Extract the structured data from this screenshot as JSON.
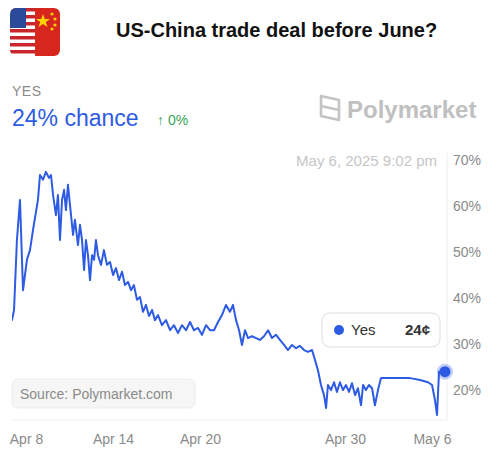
{
  "chart_data": {
    "type": "line",
    "title": "US-China trade deal before June?",
    "annotations": {
      "outcome": "YES",
      "chance": "24% chance",
      "change": "↑ 0%",
      "brand": "Polymarket",
      "timestamp": "May 6, 2025 9:02 pm",
      "source": "Source: Polymarket.com",
      "tooltip_value": "24¢"
    },
    "x": [
      7.0,
      7.14,
      7.34,
      7.55,
      7.76,
      8.03,
      8.24,
      8.45,
      8.79,
      8.93,
      9.14,
      9.34,
      9.55,
      9.69,
      9.83,
      10.03,
      10.17,
      10.31,
      10.45,
      10.59,
      10.72,
      10.86,
      11.07,
      11.21,
      11.34,
      11.55,
      11.69,
      11.83,
      11.97,
      12.1,
      12.24,
      12.38,
      12.52,
      12.66,
      12.79,
      12.93,
      13.14,
      13.34,
      13.55,
      13.76,
      13.97,
      14.17,
      14.38,
      14.59,
      14.79,
      15.0,
      15.21,
      15.41,
      15.62,
      15.83,
      16.03,
      16.24,
      16.45,
      16.66,
      16.86,
      17.07,
      17.34,
      17.62,
      17.9,
      18.17,
      18.45,
      18.72,
      19.0,
      19.28,
      19.55,
      19.83,
      20.1,
      20.38,
      20.66,
      20.93,
      21.21,
      21.48,
      21.76,
      22.03,
      22.24,
      22.45,
      22.66,
      22.86,
      23.07,
      23.28,
      23.55,
      23.83,
      24.1,
      24.38,
      24.66,
      24.93,
      25.21,
      25.48,
      25.76,
      26.03,
      26.31,
      26.59,
      26.86,
      27.14,
      27.41,
      27.69,
      27.9,
      28.1,
      28.31,
      28.52,
      28.66,
      28.79,
      29.0,
      29.21,
      29.41,
      29.62,
      29.83,
      30.03,
      30.24,
      30.45,
      30.66,
      30.86,
      31.07,
      31.21,
      31.41,
      31.62,
      31.83,
      32.03,
      32.24,
      32.45,
      33.07,
      33.76,
      34.45,
      35.14,
      35.69,
      35.97,
      36.17,
      36.31,
      36.45,
      36.86
    ],
    "series": [
      {
        "name": "Yes",
        "color": "#2d5be3",
        "values": [
          35.2,
          37.4,
          52.6,
          61.3,
          41.7,
          48.3,
          50.4,
          54.8,
          61.3,
          66.7,
          65.7,
          67.4,
          66.1,
          66.7,
          62.4,
          58.0,
          62.4,
          52.6,
          61.3,
          63.5,
          59.1,
          64.6,
          58.0,
          53.7,
          57.0,
          51.5,
          55.9,
          52.6,
          46.1,
          52.6,
          49.3,
          43.9,
          49.3,
          48.3,
          52.6,
          49.3,
          47.2,
          50.4,
          47.2,
          47.8,
          45.0,
          46.5,
          43.9,
          45.7,
          42.8,
          43.5,
          41.7,
          42.8,
          39.6,
          40.2,
          37.0,
          38.5,
          36.1,
          37.4,
          35.2,
          36.3,
          34.1,
          35.2,
          33.0,
          34.1,
          32.4,
          34.1,
          33.0,
          34.8,
          33.0,
          33.5,
          32.0,
          34.1,
          33.0,
          33.0,
          34.8,
          36.3,
          38.5,
          37.0,
          38.5,
          35.2,
          33.0,
          29.8,
          33.0,
          31.3,
          31.7,
          31.3,
          30.9,
          31.7,
          33.0,
          31.3,
          32.0,
          30.9,
          29.8,
          28.7,
          29.8,
          29.1,
          29.6,
          28.7,
          28.3,
          28.7,
          26.5,
          24.3,
          21.1,
          18.9,
          16.1,
          21.1,
          20.0,
          21.7,
          19.6,
          21.7,
          20.0,
          21.1,
          19.6,
          21.5,
          18.9,
          20.4,
          16.7,
          21.1,
          20.0,
          21.1,
          20.4,
          16.7,
          20.0,
          22.6,
          22.6,
          22.6,
          22.6,
          22.2,
          21.7,
          21.1,
          17.8,
          14.6,
          24,
          24
        ]
      }
    ],
    "xlim": [
      7,
      37
    ],
    "xticks": [
      {
        "value": 8,
        "label": "Apr 8"
      },
      {
        "value": 14,
        "label": "Apr 14"
      },
      {
        "value": 20,
        "label": "Apr 20"
      },
      {
        "value": 30,
        "label": "Apr 30"
      },
      {
        "value": 36,
        "label": "May 6"
      }
    ],
    "ylim": [
      13.5,
      71.5
    ],
    "yticks": [
      {
        "value": 20,
        "label": "20%"
      },
      {
        "value": 30,
        "label": "30%"
      },
      {
        "value": 40,
        "label": "40%"
      },
      {
        "value": 50,
        "label": "50%"
      },
      {
        "value": 60,
        "label": "60%"
      },
      {
        "value": 70,
        "label": "70%"
      }
    ],
    "grid": false
  }
}
